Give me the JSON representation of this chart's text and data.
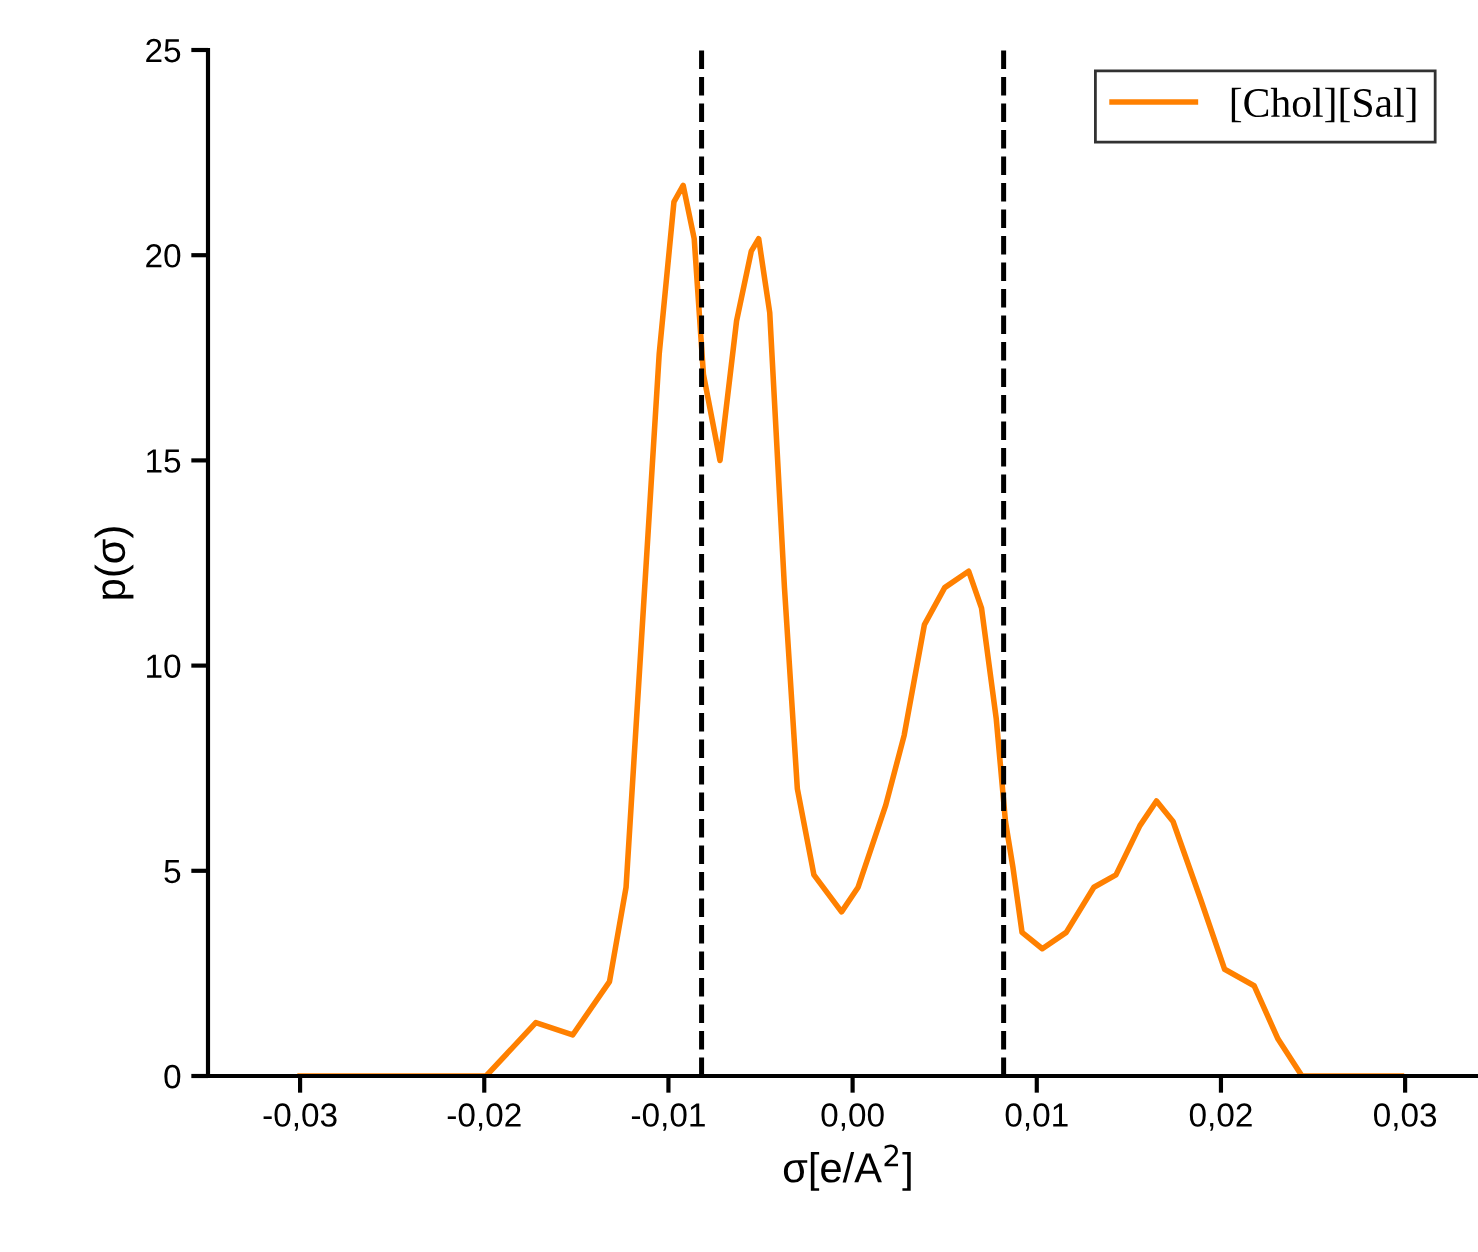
{
  "chart_data": {
    "type": "line",
    "xlabel": "σ[e/A$^{2}$]",
    "ylabel": "p(σ)",
    "xlim": [
      -0.035,
      0.0345
    ],
    "xticks": [
      {
        "value": -0.03,
        "label": "-0,03"
      },
      {
        "value": -0.02,
        "label": "-0,02"
      },
      {
        "value": -0.01,
        "label": "-0,01"
      },
      {
        "value": 0,
        "label": "0,00"
      },
      {
        "value": 0.01,
        "label": "0,01"
      },
      {
        "value": 0.02,
        "label": "0,02"
      },
      {
        "value": 0.03,
        "label": "0,03"
      }
    ],
    "ylim": [
      0,
      25
    ],
    "yticks": [
      0,
      5,
      10,
      15,
      20,
      25
    ],
    "grid": false,
    "legend": "top right",
    "marker": "none",
    "line_style": "solid",
    "ref_lines": [
      {
        "axis": "x",
        "value": -0.0082,
        "color": "#000000",
        "line_style": "dashed"
      },
      {
        "axis": "x",
        "value": 0.0082,
        "color": "#000000",
        "line_style": "dashed"
      }
    ],
    "series": [
      {
        "name": "[Chol][Sal]",
        "color": "#ff8000",
        "x": [
          -0.03,
          -0.0199,
          -0.0172,
          -0.0152,
          -0.0132,
          -0.0123,
          -0.0114,
          -0.0105,
          -0.0097,
          -0.0092,
          -0.0086,
          -0.0081,
          -0.0072,
          -0.0063,
          -0.0055,
          -0.0051,
          -0.0045,
          -0.0037,
          -0.003,
          -0.0021,
          -0.0006,
          0.0003,
          0.0018,
          0.0028,
          0.0039,
          0.005,
          0.0063,
          0.007,
          0.0078,
          0.0083,
          0.0087,
          0.0092,
          0.0103,
          0.0116,
          0.0131,
          0.0143,
          0.0156,
          0.0165,
          0.0174,
          0.0189,
          0.0202,
          0.0218,
          0.0231,
          0.0244,
          0.0298
        ],
        "values": [
          0,
          0,
          1.3,
          1.0,
          2.3,
          4.6,
          11.1,
          17.6,
          21.3,
          21.7,
          20.4,
          17.1,
          15.0,
          18.4,
          20.1,
          20.4,
          18.6,
          11.9,
          7.0,
          4.9,
          4.0,
          4.6,
          6.6,
          8.3,
          11.0,
          11.9,
          12.3,
          11.4,
          8.7,
          6.2,
          5.1,
          3.5,
          3.1,
          3.5,
          4.6,
          4.9,
          6.1,
          6.7,
          6.2,
          4.3,
          2.6,
          2.2,
          0.9,
          0,
          0
        ]
      }
    ]
  }
}
